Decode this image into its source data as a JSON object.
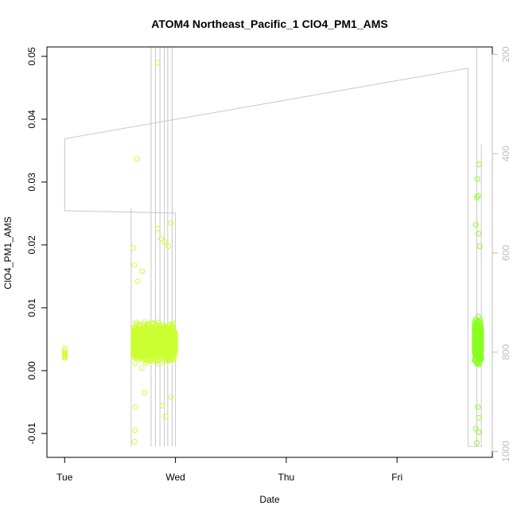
{
  "chart_data": {
    "type": "scatter",
    "title": "ATOM4 Northeast_Pacific_1 ClO4_PM1_AMS",
    "xlabel": "Date",
    "ylabel": "ClO4_PM1_AMS",
    "x_unit": "days",
    "x_ticks": [
      {
        "value": 0,
        "label": "Tue"
      },
      {
        "value": 1,
        "label": "Wed"
      },
      {
        "value": 2,
        "label": "Thu"
      },
      {
        "value": 3,
        "label": "Fri"
      }
    ],
    "xlim": [
      -0.16,
      3.86
    ],
    "ylim": [
      -0.0138,
      0.0515
    ],
    "y_ticks": [
      -0.01,
      0.0,
      0.01,
      0.02,
      0.03,
      0.04,
      0.05
    ],
    "y_tick_labels": [
      "-0.01",
      "0.00",
      "0.01",
      "0.02",
      "0.03",
      "0.04",
      "0.05"
    ],
    "y2_ticks": [
      200,
      400,
      600,
      800,
      1000
    ],
    "y2_tick_labels": [
      "200",
      "400",
      "600",
      "800",
      "1000"
    ],
    "y2lim": [
      1012,
      185
    ],
    "grid": false,
    "point_colors": {
      "early": "#ccff33",
      "late": "#88ff22"
    },
    "altitude_line_color": "#c8c8c8",
    "series": [
      {
        "clusters": [
          {
            "x_start": 0.0,
            "x_end": 0.002,
            "count": 12,
            "y_center": 0.0025,
            "y_spread": 0.0015,
            "y_min": 0.0005,
            "y_max": 0.0075,
            "color": "#ccff33"
          },
          {
            "x_start": 0.62,
            "x_end": 1.0,
            "count": 1800,
            "y_center": 0.0045,
            "y_spread": 0.0028,
            "y_min": -0.0035,
            "y_max": 0.0125,
            "color": "#ccff33"
          },
          {
            "x_start": 3.7,
            "x_end": 3.76,
            "count": 900,
            "y_center": 0.0045,
            "y_spread": 0.003,
            "y_min": -0.0045,
            "y_max": 0.013,
            "color": "#88ff22"
          }
        ],
        "outliers": [
          {
            "x": 0.652,
            "y": 0.0337
          },
          {
            "x": 0.838,
            "y": 0.049
          },
          {
            "x": 0.62,
            "y": 0.0195
          },
          {
            "x": 0.63,
            "y": 0.0168
          },
          {
            "x": 0.66,
            "y": 0.0142
          },
          {
            "x": 0.7,
            "y": 0.0158
          },
          {
            "x": 0.84,
            "y": 0.0226
          },
          {
            "x": 0.87,
            "y": 0.021
          },
          {
            "x": 0.9,
            "y": 0.0205
          },
          {
            "x": 0.935,
            "y": 0.0198
          },
          {
            "x": 0.96,
            "y": 0.0235
          },
          {
            "x": 0.63,
            "y": -0.0113
          },
          {
            "x": 0.635,
            "y": -0.0095
          },
          {
            "x": 0.64,
            "y": -0.0058
          },
          {
            "x": 0.72,
            "y": -0.0035
          },
          {
            "x": 0.88,
            "y": -0.0056
          },
          {
            "x": 0.91,
            "y": -0.0073
          },
          {
            "x": 0.96,
            "y": -0.0042
          },
          {
            "x": 3.71,
            "y": 0.0232
          },
          {
            "x": 3.72,
            "y": 0.0275
          },
          {
            "x": 3.725,
            "y": 0.0305
          },
          {
            "x": 3.73,
            "y": 0.0278
          },
          {
            "x": 3.74,
            "y": 0.0328
          },
          {
            "x": 3.735,
            "y": 0.0218
          },
          {
            "x": 3.745,
            "y": 0.0198
          },
          {
            "x": 3.71,
            "y": -0.0092
          },
          {
            "x": 3.72,
            "y": -0.0115
          },
          {
            "x": 3.74,
            "y": -0.0075
          },
          {
            "x": 3.73,
            "y": -0.0058
          },
          {
            "x": 3.735,
            "y": -0.0098
          }
        ]
      }
    ],
    "altitude_trace": {
      "segments": [
        [
          [
            0.0,
            515
          ],
          [
            0.0,
            370
          ],
          [
            3.64,
            228
          ],
          [
            3.64,
            990
          ],
          [
            3.72,
            990
          ],
          [
            3.72,
            185
          ],
          [
            3.72,
            990
          ],
          [
            3.76,
            990
          ],
          [
            3.76,
            380
          ]
        ],
        [
          [
            0.0,
            515
          ],
          [
            1.0,
            520
          ],
          [
            1.0,
            990
          ]
        ]
      ],
      "spikes": [
        {
          "x": 0.6,
          "from": 990,
          "to": 510
        },
        {
          "x": 0.78,
          "from": 990,
          "to": 185
        },
        {
          "x": 0.82,
          "from": 990,
          "to": 185
        },
        {
          "x": 0.86,
          "from": 990,
          "to": 185
        },
        {
          "x": 0.9,
          "from": 990,
          "to": 185
        },
        {
          "x": 0.93,
          "from": 990,
          "to": 185
        },
        {
          "x": 0.97,
          "from": 990,
          "to": 185
        }
      ]
    }
  }
}
